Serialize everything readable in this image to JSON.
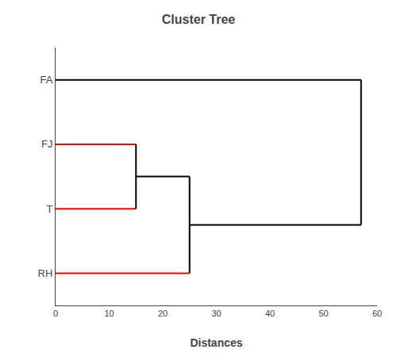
{
  "chart_data": {
    "type": "dendrogram",
    "title": "Cluster Tree",
    "xlabel": "Distances",
    "xlim": [
      0,
      60
    ],
    "xticks": [
      0,
      10,
      20,
      30,
      40,
      50,
      60
    ],
    "ylim": [
      0.5,
      4.5
    ],
    "yticks": [
      {
        "value": 4,
        "label": "FA"
      },
      {
        "value": 3,
        "label": "FJ"
      },
      {
        "value": 2,
        "label": "T"
      },
      {
        "value": 1,
        "label": "RH"
      }
    ],
    "grid": false,
    "segments": [
      {
        "x1": 0,
        "y1": 3,
        "x2": 15,
        "y2": 3,
        "color": "red"
      },
      {
        "x1": 0,
        "y1": 2,
        "x2": 15,
        "y2": 2,
        "color": "red"
      },
      {
        "x1": 15,
        "y1": 2,
        "x2": 15,
        "y2": 3,
        "color": "black"
      },
      {
        "x1": 0,
        "y1": 1,
        "x2": 25,
        "y2": 1,
        "color": "red"
      },
      {
        "x1": 15,
        "y1": 2.5,
        "x2": 25,
        "y2": 2.5,
        "color": "black"
      },
      {
        "x1": 25,
        "y1": 1,
        "x2": 25,
        "y2": 2.5,
        "color": "black"
      },
      {
        "x1": 0,
        "y1": 4,
        "x2": 57,
        "y2": 4,
        "color": "black"
      },
      {
        "x1": 25,
        "y1": 1.75,
        "x2": 57,
        "y2": 1.75,
        "color": "black"
      },
      {
        "x1": 57,
        "y1": 1.75,
        "x2": 57,
        "y2": 4,
        "color": "black"
      }
    ]
  }
}
